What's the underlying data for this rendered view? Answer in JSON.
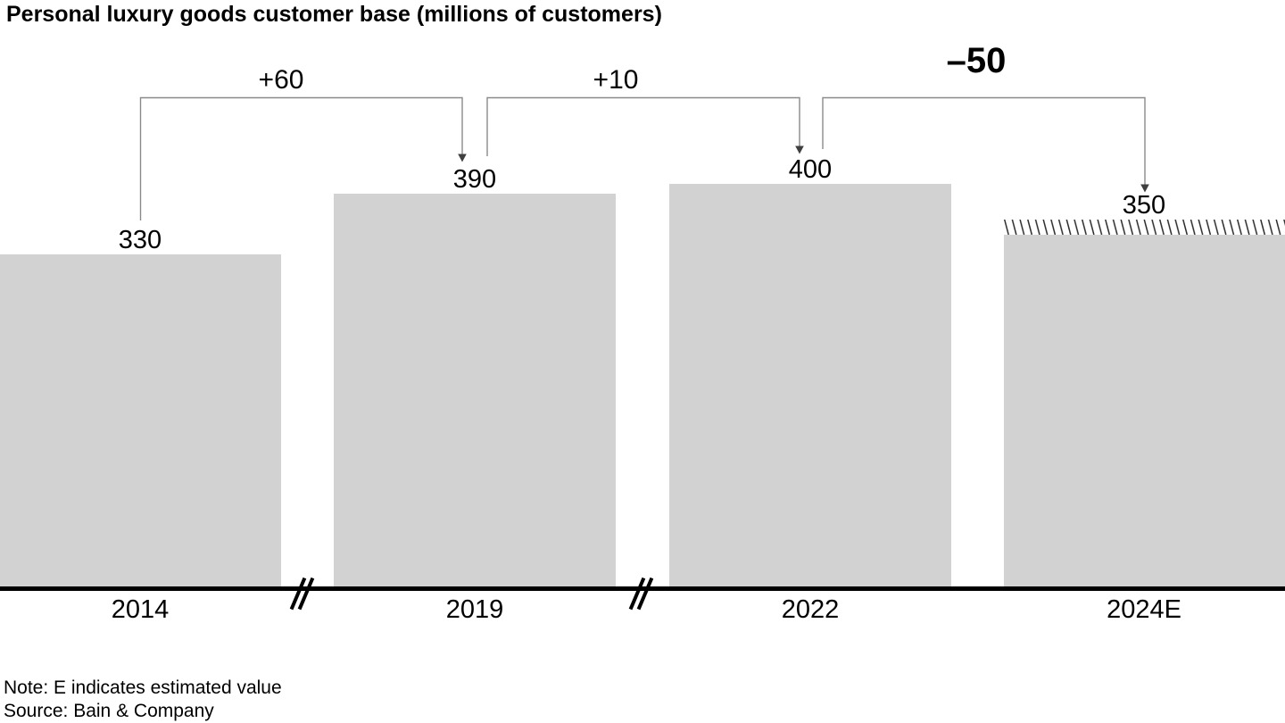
{
  "title": "Personal luxury goods customer base (millions of customers)",
  "chart_data": {
    "type": "bar",
    "title": "Personal luxury goods customer base (millions of customers)",
    "unit": "millions of customers",
    "categories": [
      "2014",
      "2019",
      "2022",
      "2024E"
    ],
    "values": [
      330,
      390,
      400,
      350
    ],
    "bar_color": "#d2d2d2",
    "estimated_category": "2024E",
    "estimated_style": "hatched-top",
    "deltas": [
      {
        "from": "2014",
        "to": "2019",
        "label": "+60",
        "value": 60,
        "emphasis": false
      },
      {
        "from": "2019",
        "to": "2022",
        "label": "+10",
        "value": 10,
        "emphasis": false
      },
      {
        "from": "2022",
        "to": "2024E",
        "label": "–50",
        "value": -50,
        "emphasis": true
      }
    ],
    "axis_breaks_between": [
      [
        "2014",
        "2019"
      ],
      [
        "2019",
        "2022"
      ]
    ],
    "ylim": [
      0,
      460
    ],
    "grid": false,
    "legend": "none",
    "xlabel": "",
    "ylabel": ""
  },
  "notes": [
    "Note: E indicates estimated value",
    "Source: Bain & Company"
  ]
}
